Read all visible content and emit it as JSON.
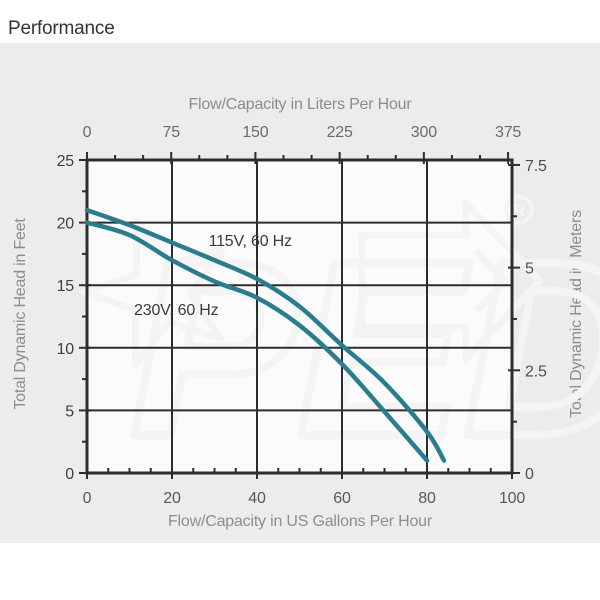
{
  "page": {
    "title": "Performance"
  },
  "colors": {
    "panel_bg": "#ececec",
    "plot_bg": "#fbfbfb",
    "grid": "#2d2d2d",
    "curve": "#287d8e",
    "curve_label": "#3c3c3c",
    "tick_label_left": "#404040",
    "tick_label_bottom": "#585858",
    "tick_label_top": "#6b6b6b",
    "tick_label_right": "#4f4f4f",
    "watermark": "#f4f4f4"
  },
  "watermark": {
    "text": "PED",
    "registered_mark": "®"
  },
  "chart_data": {
    "type": "line",
    "title": "Performance",
    "grid": true,
    "axes": {
      "bottom": {
        "label": "Flow/Capacity in US Gallons Per Hour",
        "min": 0,
        "max": 100,
        "major_ticks": [
          0,
          20,
          40,
          60,
          80,
          100
        ],
        "minor_step": 5
      },
      "top": {
        "label": "Flow/Capacity in Liters Per Hour",
        "major_ticks": [
          0,
          75,
          150,
          225,
          300,
          375
        ],
        "minor_step": 25,
        "liters_per_gallon": 3.785
      },
      "left": {
        "label": "Total Dynamic Head in Feet",
        "min": 0,
        "max": 25,
        "major_ticks": [
          0,
          5,
          10,
          15,
          20,
          25
        ],
        "minor_step": 2.5
      },
      "right": {
        "label": "Total Dynamic Head in Meters",
        "major_ticks": [
          0,
          2.5,
          5,
          7.5
        ],
        "minor_step": 1.25,
        "feet_per_meter": 3.2808
      }
    },
    "series": [
      {
        "name": "115V, 60 Hz",
        "label_x_gal": 38.4,
        "label_y_ft": 18.6,
        "points": [
          [
            0,
            21
          ],
          [
            10,
            19.8
          ],
          [
            20,
            18.4
          ],
          [
            30,
            17
          ],
          [
            40,
            15.5
          ],
          [
            50,
            13.3
          ],
          [
            60,
            10.2
          ],
          [
            70,
            7.2
          ],
          [
            80,
            3.3
          ],
          [
            84,
            1
          ]
        ]
      },
      {
        "name": "230V, 60 Hz",
        "label_x_gal": 21,
        "label_y_ft": 13.1,
        "points": [
          [
            0,
            20
          ],
          [
            10,
            19
          ],
          [
            20,
            17
          ],
          [
            30,
            15.3
          ],
          [
            40,
            14
          ],
          [
            50,
            11.8
          ],
          [
            60,
            8.7
          ],
          [
            70,
            4.9
          ],
          [
            80,
            1
          ]
        ]
      }
    ]
  }
}
